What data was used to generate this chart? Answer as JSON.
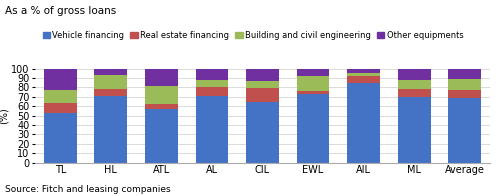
{
  "categories": [
    "TL",
    "HL",
    "ATL",
    "AL",
    "CIL",
    "EWL",
    "AIL",
    "ML",
    "Average"
  ],
  "vehicle": [
    53,
    71,
    57,
    71,
    65,
    73,
    85,
    70,
    69
  ],
  "real_estate": [
    10,
    7,
    5,
    9,
    14,
    3,
    7,
    8,
    8
  ],
  "building": [
    14,
    15,
    20,
    8,
    8,
    16,
    3,
    10,
    12
  ],
  "other": [
    23,
    7,
    18,
    12,
    13,
    8,
    5,
    12,
    11
  ],
  "colors": {
    "vehicle": "#4472C4",
    "real_estate": "#C0504D",
    "building": "#9BBB59",
    "other": "#7030A0"
  },
  "legend_labels": [
    "Vehicle financing",
    "Real estate financing",
    "Building and civil engineering",
    "Other equipments"
  ],
  "ylabel": "(%)",
  "title": "As a % of gross loans",
  "source": "Source: Fitch and leasing companies",
  "ylim": [
    0,
    100
  ],
  "yticks": [
    0,
    10,
    20,
    30,
    40,
    50,
    60,
    70,
    80,
    90,
    100
  ]
}
